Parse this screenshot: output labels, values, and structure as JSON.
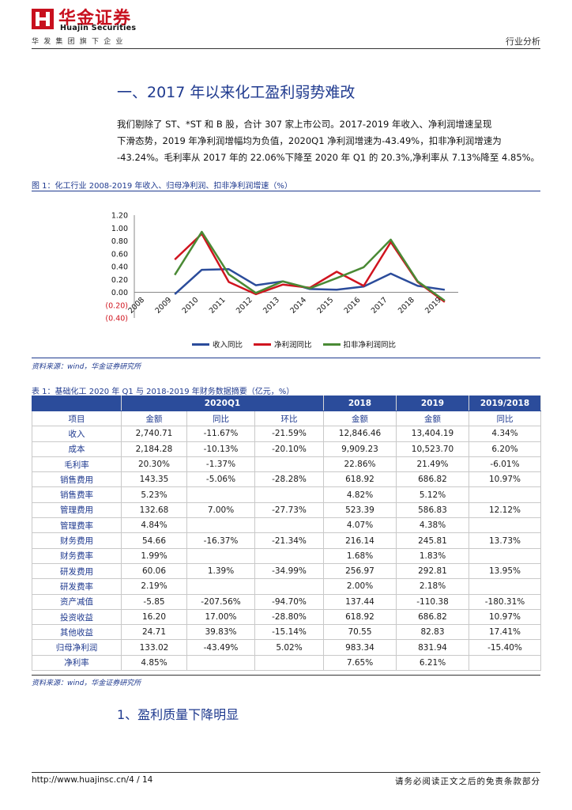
{
  "header": {
    "logo_cn": "华金证券",
    "logo_en": "Huajin Securities",
    "logo_sub": "华发集团旗下企业",
    "section_label": "行业分析"
  },
  "section": {
    "title": "一、2017 年以来化工盈利弱势难改",
    "paragraph_lines": [
      "我们剔除了 ST、*ST 和 B 股，合计 307 家上市公司。2017-2019 年收入、净利润增速呈现",
      "下滑态势，2019 年净利润增幅均为负值，2020Q1 净利润增速为-43.49%，扣非净利润增速为",
      "-43.24%。毛利率从 2017 年的 22.06%下降至 2020 年 Q1 的 20.3%,净利率从 7.13%降至 4.85%。"
    ]
  },
  "figure": {
    "caption": "图 1：化工行业 2008-2019 年收入、归母净利润、扣非净利润增速（%）",
    "source": "资料来源：wind，华金证券研究所"
  },
  "chart_data": {
    "type": "line",
    "title": "",
    "xlabel": "",
    "ylabel": "",
    "categories": [
      "2008",
      "2009",
      "2010",
      "2011",
      "2012",
      "2013",
      "2014",
      "2015",
      "2016",
      "2017",
      "2018",
      "2019"
    ],
    "y_ticks": [
      "1.20",
      "1.00",
      "0.80",
      "0.60",
      "0.40",
      "0.20",
      "0.00",
      "(0.20)",
      "(0.40)"
    ],
    "ylim": [
      -0.4,
      1.2
    ],
    "grid": false,
    "legend_position": "bottom",
    "series": [
      {
        "name": "收入同比",
        "color": "#2b4c9b",
        "values": [
          null,
          -0.03,
          0.35,
          0.36,
          0.11,
          0.17,
          0.05,
          0.04,
          0.09,
          0.29,
          0.1,
          0.04
        ]
      },
      {
        "name": "净利润同比",
        "color": "#d0141f",
        "values": [
          null,
          0.51,
          0.91,
          0.16,
          -0.03,
          0.12,
          0.07,
          0.32,
          0.1,
          0.78,
          0.16,
          -0.15
        ]
      },
      {
        "name": "扣非净利润同比",
        "color": "#4a8a35",
        "values": [
          null,
          0.27,
          0.94,
          0.28,
          -0.01,
          0.17,
          0.06,
          0.22,
          0.39,
          0.82,
          0.17,
          -0.13
        ]
      }
    ]
  },
  "table": {
    "caption": "表 1：基础化工 2020 年 Q1 与 2018-2019 年财务数据摘要（亿元，%）",
    "source": "资料来源：wind，华金证券研究所",
    "group_headers": [
      "2020Q1",
      "2018",
      "2019",
      "2019/2018"
    ],
    "sub_headers": [
      "项目",
      "金额",
      "同比",
      "环比",
      "金额",
      "金额",
      "同比"
    ],
    "rows": [
      [
        "收入",
        "2,740.71",
        "-11.67%",
        "-21.59%",
        "12,846.46",
        "13,404.19",
        "4.34%"
      ],
      [
        "成本",
        "2,184.28",
        "-10.13%",
        "-20.10%",
        "9,909.23",
        "10,523.70",
        "6.20%"
      ],
      [
        "毛利率",
        "20.30%",
        "-1.37%",
        "",
        "22.86%",
        "21.49%",
        "-6.01%"
      ],
      [
        "销售费用",
        "143.35",
        "-5.06%",
        "-28.28%",
        "618.92",
        "686.82",
        "10.97%"
      ],
      [
        "销售费率",
        "5.23%",
        "",
        "",
        "4.82%",
        "5.12%",
        ""
      ],
      [
        "管理费用",
        "132.68",
        "7.00%",
        "-27.73%",
        "523.39",
        "586.83",
        "12.12%"
      ],
      [
        "管理费率",
        "4.84%",
        "",
        "",
        "4.07%",
        "4.38%",
        ""
      ],
      [
        "财务费用",
        "54.66",
        "-16.37%",
        "-21.34%",
        "216.14",
        "245.81",
        "13.73%"
      ],
      [
        "财务费率",
        "1.99%",
        "",
        "",
        "1.68%",
        "1.83%",
        ""
      ],
      [
        "研发费用",
        "60.06",
        "1.39%",
        "-34.99%",
        "256.97",
        "292.81",
        "13.95%"
      ],
      [
        "研发费率",
        "2.19%",
        "",
        "",
        "2.00%",
        "2.18%",
        ""
      ],
      [
        "资产减值",
        "-5.85",
        "-207.56%",
        "-94.70%",
        "137.44",
        "-110.38",
        "-180.31%"
      ],
      [
        "投资收益",
        "16.20",
        "17.00%",
        "-28.80%",
        "618.92",
        "686.82",
        "10.97%"
      ],
      [
        "其他收益",
        "24.71",
        "39.83%",
        "-15.14%",
        "70.55",
        "82.83",
        "17.41%"
      ],
      [
        "归母净利润",
        "133.02",
        "-43.49%",
        "5.02%",
        "983.34",
        "831.94",
        "-15.40%"
      ],
      [
        "净利率",
        "4.85%",
        "",
        "",
        "7.65%",
        "6.21%",
        ""
      ]
    ]
  },
  "subsection": {
    "title": "1、盈利质量下降明显"
  },
  "footer": {
    "left": "http://www.huajinsc.cn/4 / 14",
    "right": "请务必阅读正文之后的免责条款部分"
  },
  "colors": {
    "brand_red": "#c8101e",
    "heading_blue": "#1f3a8f",
    "table_header": "#2b4c9b"
  }
}
